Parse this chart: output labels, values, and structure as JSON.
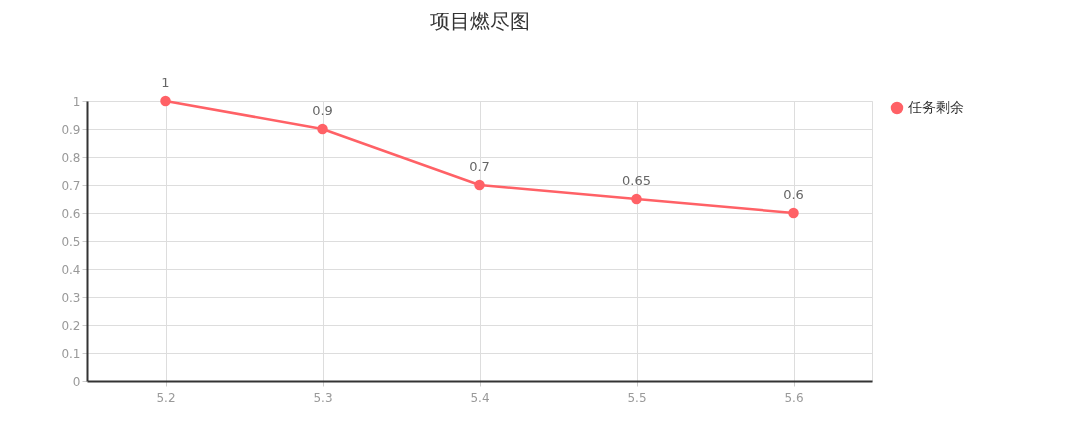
{
  "chart_data": {
    "type": "line",
    "title": "项目燃尽图",
    "categories": [
      "5.2",
      "5.3",
      "5.4",
      "5.5",
      "5.6"
    ],
    "series": [
      {
        "name": "任务剩余",
        "color": "#ff6166",
        "values": [
          1,
          0.9,
          0.7,
          0.65,
          0.6
        ]
      }
    ],
    "ylim": [
      0,
      1
    ],
    "yticks": [
      0,
      0.1,
      0.2,
      0.3,
      0.4,
      0.5,
      0.6,
      0.7,
      0.8,
      0.9,
      1
    ],
    "grid": true,
    "legend": "right",
    "marker": "circle",
    "line_style": "solid",
    "data_labels": true
  }
}
